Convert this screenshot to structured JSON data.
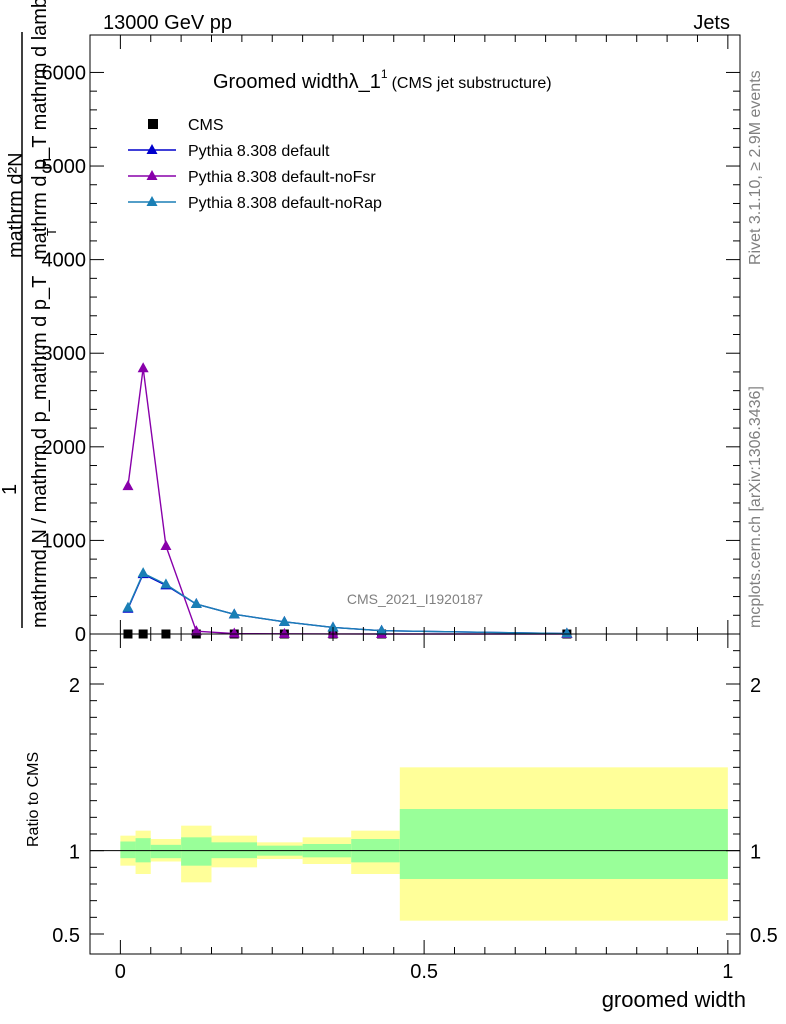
{
  "header": {
    "left": "13000 GeV pp",
    "right": "Jets"
  },
  "side_labels": {
    "rivet": "Rivet 3.1.10, ≥ 2.9M events",
    "mcplots": "mcplots.cern.ch [arXiv:1306.3436]"
  },
  "watermark": "CMS_2021_I1920187",
  "chart_data": [
    {
      "type": "line",
      "title_main": "Groomed widthλ_1",
      "title_sup": "1",
      "title_sub": "(CMS jet substructure)",
      "ylabel_line1": "mathrm d²N",
      "ylabel_line2": "mathrm d p_T mathrm d lambda",
      "ylabel_sub": "T",
      "ylabel_line3": "1",
      "ylabel_line4": "mathrmd N / mathrm d p_mathrm d p_T",
      "xlim": [
        -0.05,
        1.02
      ],
      "ylim": [
        0,
        6400
      ],
      "yticks": [
        {
          "v": 0,
          "label": "0"
        },
        {
          "v": 1000,
          "label": "1000"
        },
        {
          "v": 2000,
          "label": "2000"
        },
        {
          "v": 3000,
          "label": "3000"
        },
        {
          "v": 4000,
          "label": "4000"
        },
        {
          "v": 5000,
          "label": "5000"
        },
        {
          "v": 6000,
          "label": "6000"
        }
      ],
      "legend": [
        {
          "name": "CMS",
          "color": "#000000",
          "marker": "square"
        },
        {
          "name": "Pythia 8.308 default",
          "color": "#0000cc",
          "marker": "triangle"
        },
        {
          "name": "Pythia 8.308 default-noFsr",
          "color": "#8800aa",
          "marker": "triangle"
        },
        {
          "name": "Pythia 8.308 default-noRap",
          "color": "#1a7fb5",
          "marker": "triangle"
        }
      ],
      "series": [
        {
          "name": "CMS",
          "color": "#000000",
          "marker": "square",
          "x": [
            0.0125,
            0.0375,
            0.075,
            0.125,
            0.1875,
            0.27,
            0.35,
            0.43,
            0.735
          ],
          "y": [
            0,
            0,
            0,
            0,
            0,
            0,
            0,
            0,
            0
          ]
        },
        {
          "name": "Pythia 8.308 default",
          "color": "#0000cc",
          "marker": "triangle",
          "x": [
            0.0125,
            0.0375,
            0.075,
            0.125,
            0.1875,
            0.27,
            0.35,
            0.43,
            0.735
          ],
          "y": [
            270,
            640,
            520,
            320,
            210,
            130,
            70,
            35,
            5
          ]
        },
        {
          "name": "Pythia 8.308 default-noFsr",
          "color": "#8800aa",
          "marker": "triangle",
          "x": [
            0.0125,
            0.0375,
            0.075,
            0.125,
            0.1875,
            0.27,
            0.35,
            0.43,
            0.735
          ],
          "y": [
            1580,
            2840,
            940,
            30,
            5,
            2,
            1,
            0,
            0
          ]
        },
        {
          "name": "Pythia 8.308 default-noRap",
          "color": "#1a7fb5",
          "marker": "triangle",
          "x": [
            0.0125,
            0.0375,
            0.075,
            0.125,
            0.1875,
            0.27,
            0.35,
            0.43,
            0.735
          ],
          "y": [
            280,
            650,
            530,
            320,
            210,
            130,
            70,
            35,
            5
          ]
        }
      ]
    },
    {
      "type": "area",
      "ylabel": "Ratio to CMS",
      "xlabel": "groomed width",
      "xlim": [
        -0.05,
        1.02
      ],
      "ylim": [
        0.38,
        2.3
      ],
      "yticks": [
        {
          "v": 0.5,
          "label": "0.5"
        },
        {
          "v": 1,
          "label": "1"
        },
        {
          "v": 2,
          "label": "2"
        }
      ],
      "xticks": [
        {
          "v": 0,
          "label": "0"
        },
        {
          "v": 0.5,
          "label": "0.5"
        },
        {
          "v": 1,
          "label": "1"
        }
      ],
      "bands": [
        {
          "x0": 0.0,
          "x1": 0.025,
          "stat": [
            0.955,
            1.055
          ],
          "total": [
            0.91,
            1.09
          ]
        },
        {
          "x0": 0.025,
          "x1": 0.05,
          "stat": [
            0.93,
            1.075
          ],
          "total": [
            0.86,
            1.12
          ]
        },
        {
          "x0": 0.05,
          "x1": 0.1,
          "stat": [
            0.955,
            1.035
          ],
          "total": [
            0.935,
            1.07
          ]
        },
        {
          "x0": 0.1,
          "x1": 0.15,
          "stat": [
            0.91,
            1.08
          ],
          "total": [
            0.81,
            1.15
          ]
        },
        {
          "x0": 0.15,
          "x1": 0.225,
          "stat": [
            0.955,
            1.05
          ],
          "total": [
            0.9,
            1.09
          ]
        },
        {
          "x0": 0.225,
          "x1": 0.3,
          "stat": [
            0.97,
            1.03
          ],
          "total": [
            0.95,
            1.05
          ]
        },
        {
          "x0": 0.3,
          "x1": 0.38,
          "stat": [
            0.96,
            1.04
          ],
          "total": [
            0.92,
            1.08
          ]
        },
        {
          "x0": 0.38,
          "x1": 0.46,
          "stat": [
            0.93,
            1.07
          ],
          "total": [
            0.86,
            1.12
          ]
        },
        {
          "x0": 0.46,
          "x1": 1.0,
          "stat": [
            0.83,
            1.25
          ],
          "total": [
            0.58,
            1.5
          ]
        }
      ],
      "colors": {
        "stat": "#99ff99",
        "total": "#ffff99"
      }
    }
  ]
}
